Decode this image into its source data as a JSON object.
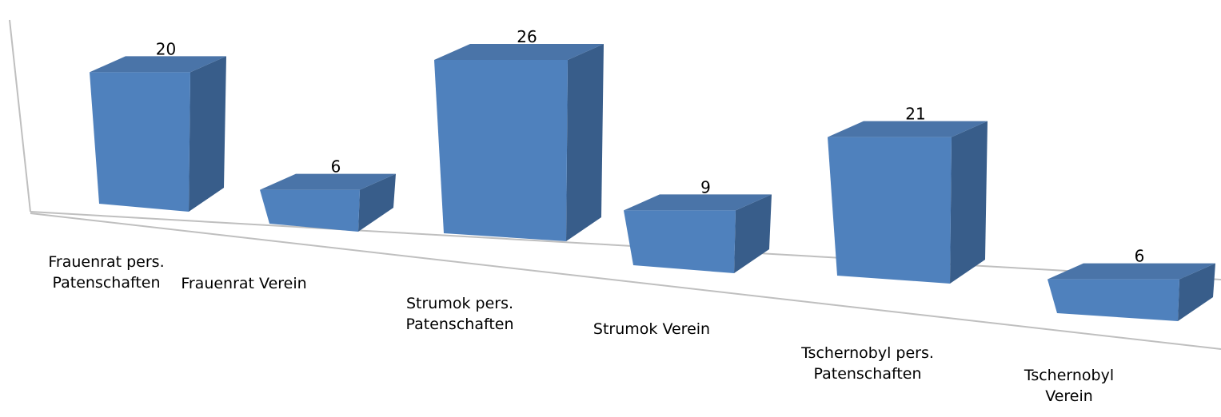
{
  "chart_data": {
    "type": "bar3d",
    "categories": [
      "Frauenrat pers. Patenschaften",
      "Frauenrat Verein",
      "Strumok pers. Patenschaften",
      "Strumok Verein",
      "Tschernobyl pers. Patenschaften",
      "Tschernobyl Verein"
    ],
    "values": [
      20,
      6,
      26,
      9,
      21,
      6
    ],
    "color": "#4f81bd"
  }
}
